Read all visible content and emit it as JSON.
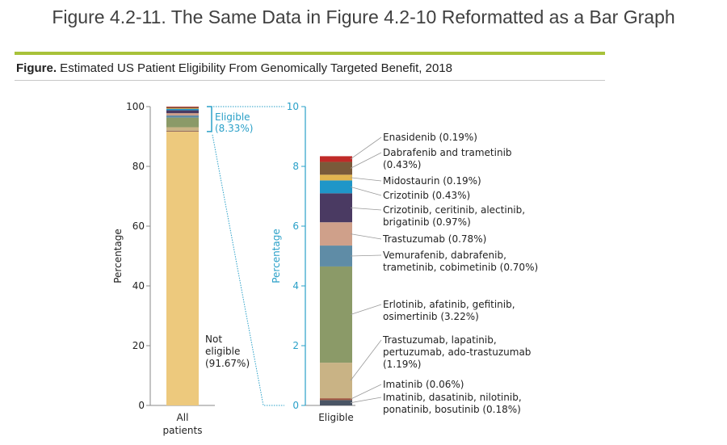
{
  "page": {
    "title": "Figure 4.2-11. The Same Data in Figure 4.2-10 Reformatted as a Bar Graph",
    "caption_bold": "Figure.",
    "caption_text": " Estimated US Patient Eligibility From Genomically Targeted Benefit, 2018"
  },
  "colors": {
    "accent_rule": "#a8c23a",
    "right_axis": "#2aa0c8",
    "left_axis": "#8a8a8a"
  },
  "chart_data": [
    {
      "type": "bar",
      "stacked": true,
      "title": "All patients",
      "xlabel": "",
      "ylabel": "Percentage",
      "categories": [
        "All patients"
      ],
      "category_label_lines": [
        "All",
        "patients"
      ],
      "ylim": [
        0,
        100
      ],
      "yticks": [
        0,
        20,
        40,
        60,
        80,
        100
      ],
      "grid": false,
      "series": [
        {
          "name": "Not eligible",
          "value": 91.67,
          "color": "#edc97d",
          "label_lines": [
            "Not",
            "eligible",
            "(91.67%)"
          ]
        },
        {
          "name": "Eligible",
          "value": 8.33,
          "label_lines": [
            "Eligible",
            "(8.33%)"
          ],
          "breakdown": "see second chart"
        }
      ]
    },
    {
      "type": "bar",
      "stacked": true,
      "title": "Eligible",
      "xlabel": "",
      "ylabel": "Percentage",
      "categories": [
        "Eligible"
      ],
      "ylim": [
        0,
        10
      ],
      "yticks": [
        0,
        2,
        4,
        6,
        8,
        10
      ],
      "grid": false,
      "legend": "right (leader-line labels)",
      "series": [
        {
          "name": "Imatinib, dasatinib, nilotinib, ponatinib, bosutinib",
          "value": 0.18,
          "color": "#4a5565",
          "label_lines": [
            "Imatinib, dasatinib, nilotinib,",
            "ponatinib, bosutinib (0.18%)"
          ]
        },
        {
          "name": "Imatinib",
          "value": 0.06,
          "color": "#a0553e",
          "label_lines": [
            "Imatinib (0.06%)"
          ]
        },
        {
          "name": "Trastuzumab, lapatinib, pertuzumab, ado-trastuzumab",
          "value": 1.19,
          "color": "#c9b385",
          "label_lines": [
            "Trastuzumab, lapatinib,",
            "pertuzumab, ado-trastuzumab",
            "(1.19%)"
          ]
        },
        {
          "name": "Erlotinib, afatinib, gefitinib, osimertinib",
          "value": 3.22,
          "color": "#8b9a68",
          "label_lines": [
            "Erlotinib, afatinib, gefitinib,",
            "osimertinib (3.22%)"
          ]
        },
        {
          "name": "Vemurafenib, dabrafenib, trametinib, cobimetinib",
          "value": 0.7,
          "color": "#5f8ca6",
          "label_lines": [
            "Vemurafenib, dabrafenib,",
            "trametinib, cobimetinib (0.70%)"
          ]
        },
        {
          "name": "Trastuzumab",
          "value": 0.78,
          "color": "#cfa08a",
          "label_lines": [
            "Trastuzumab (0.78%)"
          ]
        },
        {
          "name": "Crizotinib, ceritinib, alectinib, brigatinib",
          "value": 0.97,
          "color": "#4a3a62",
          "label_lines": [
            "Crizotinib, ceritinib, alectinib,",
            "brigatinib (0.97%)"
          ]
        },
        {
          "name": "Crizotinib",
          "value": 0.43,
          "color": "#1f96c8",
          "label_lines": [
            "Crizotinib (0.43%)"
          ]
        },
        {
          "name": "Midostaurin",
          "value": 0.19,
          "color": "#e2b550",
          "label_lines": [
            "Midostaurin (0.19%)"
          ]
        },
        {
          "name": "Dabrafenib and trametinib",
          "value": 0.43,
          "color": "#7a5a3a",
          "label_lines": [
            "Dabrafenib and trametinib",
            "(0.43%)"
          ]
        },
        {
          "name": "Enasidenib",
          "value": 0.19,
          "color": "#c02a28",
          "label_lines": [
            "Enasidenib (0.19%)"
          ]
        }
      ]
    }
  ]
}
